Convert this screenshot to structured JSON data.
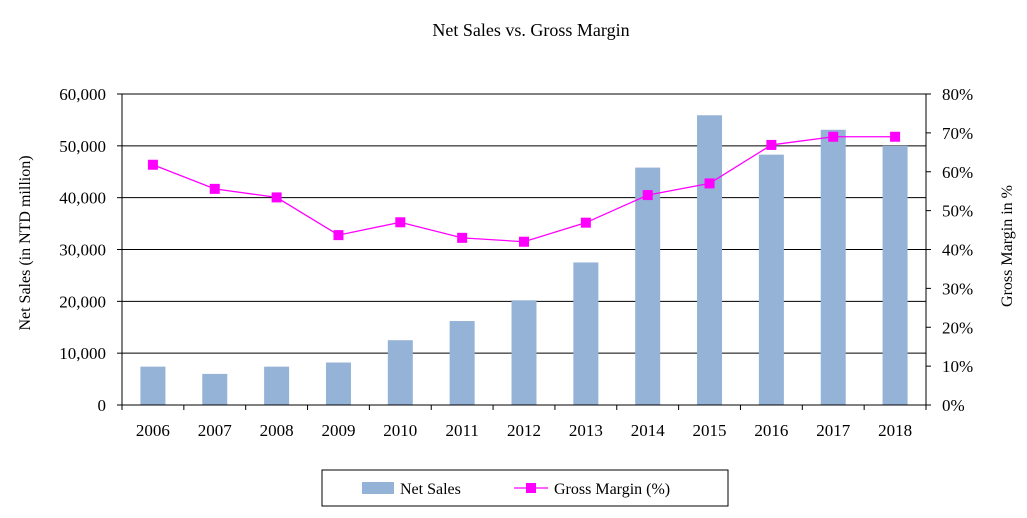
{
  "chart_data": {
    "type": "bar",
    "title": "Net Sales vs. Gross Margin",
    "categories": [
      "2006",
      "2007",
      "2008",
      "2009",
      "2010",
      "2011",
      "2012",
      "2013",
      "2014",
      "2015",
      "2016",
      "2017",
      "2018"
    ],
    "series": [
      {
        "name": "Net Sales",
        "type": "bar",
        "axis": "left",
        "color": "#95b3d7",
        "values": [
          7400,
          6000,
          7400,
          8200,
          12500,
          16200,
          20200,
          27500,
          45800,
          55900,
          48300,
          53100,
          50000
        ]
      },
      {
        "name": "Gross Margin (%)",
        "type": "line",
        "axis": "right",
        "color": "#ff00ff",
        "values": [
          61.8,
          55.6,
          53.4,
          43.7,
          47.0,
          43.0,
          42.0,
          46.9,
          54.0,
          57.0,
          66.9,
          69.0,
          69.0
        ]
      }
    ],
    "ylabel_left": "Net Sales (in NTD million)",
    "ylabel_right": "Gross Margin  in  %",
    "ylim_left": [
      0,
      60000
    ],
    "yticks_left": [
      "0",
      "10,000",
      "20,000",
      "30,000",
      "40,000",
      "50,000",
      "60,000"
    ],
    "ylim_right": [
      0,
      80
    ],
    "yticks_right": [
      "0%",
      "10%",
      "20%",
      "30%",
      "40%",
      "50%",
      "60%",
      "70%",
      "80%"
    ],
    "grid": true,
    "legend_position": "bottom"
  }
}
